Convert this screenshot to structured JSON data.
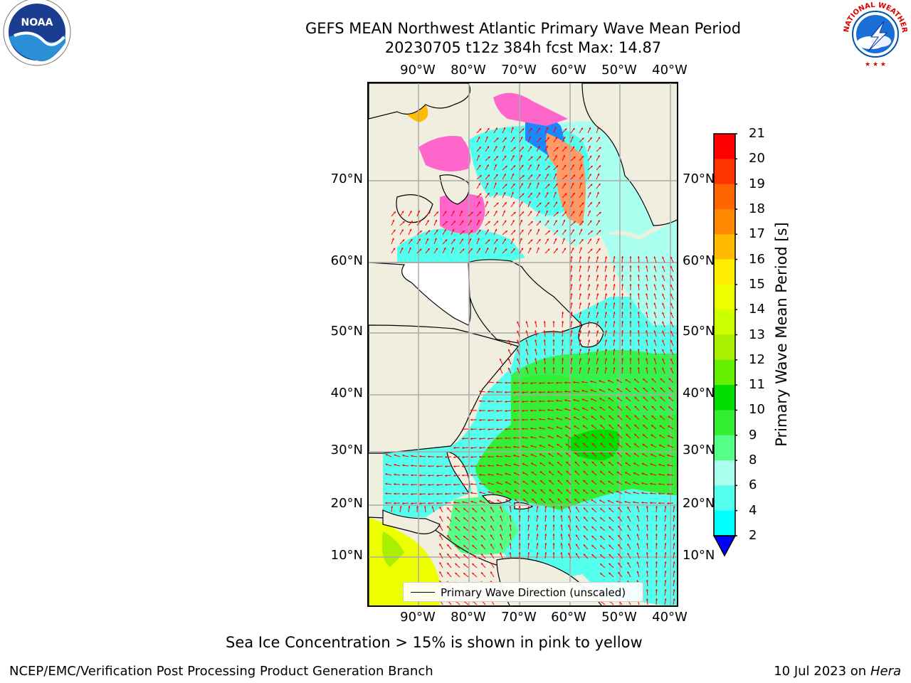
{
  "header": {
    "title": "GEFS MEAN Northwest Atlantic Primary Wave Mean Period",
    "subtitle": "20230705 t12z 384h fcst   Max: 14.87"
  },
  "logos": {
    "left_icon": "noaa-logo-icon",
    "left_text": "NOAA",
    "right_icon": "nws-logo-icon",
    "right_text": "NATIONAL WEATHER SERVICE"
  },
  "map": {
    "lon_ticks": [
      "90°W",
      "80°W",
      "70°W",
      "60°W",
      "50°W",
      "40°W"
    ],
    "lat_ticks": [
      "70°N",
      "60°N",
      "50°N",
      "40°N",
      "30°N",
      "20°N",
      "10°N"
    ],
    "land_color": "#f0eedf",
    "arrow_color": "#ff0000",
    "grid": true
  },
  "colorbar": {
    "title": "Primary Wave Mean Period [s]",
    "labels": [
      "21",
      "20",
      "19",
      "18",
      "17",
      "16",
      "15",
      "14",
      "13",
      "12",
      "11",
      "10",
      "9",
      "8",
      "6",
      "4",
      "2"
    ],
    "colors": [
      "#ff0000",
      "#ff3300",
      "#ff6600",
      "#ff8800",
      "#ffbb00",
      "#ffee00",
      "#eeff00",
      "#ccff00",
      "#aaee00",
      "#66ee00",
      "#00dd00",
      "#33ee33",
      "#55ff88",
      "#aaffee",
      "#55ffee",
      "#00ffff",
      "#0088ff",
      "#0000ff"
    ]
  },
  "legend": {
    "label": "Primary Wave Direction (unscaled)"
  },
  "caption": "Sea Ice Concentration > 15% is shown in pink to yellow",
  "footer": {
    "left": "NCEP/EMC/Verification Post Processing Product Generation Branch",
    "right_date": "10 Jul 2023 on",
    "right_host": "Hera"
  }
}
